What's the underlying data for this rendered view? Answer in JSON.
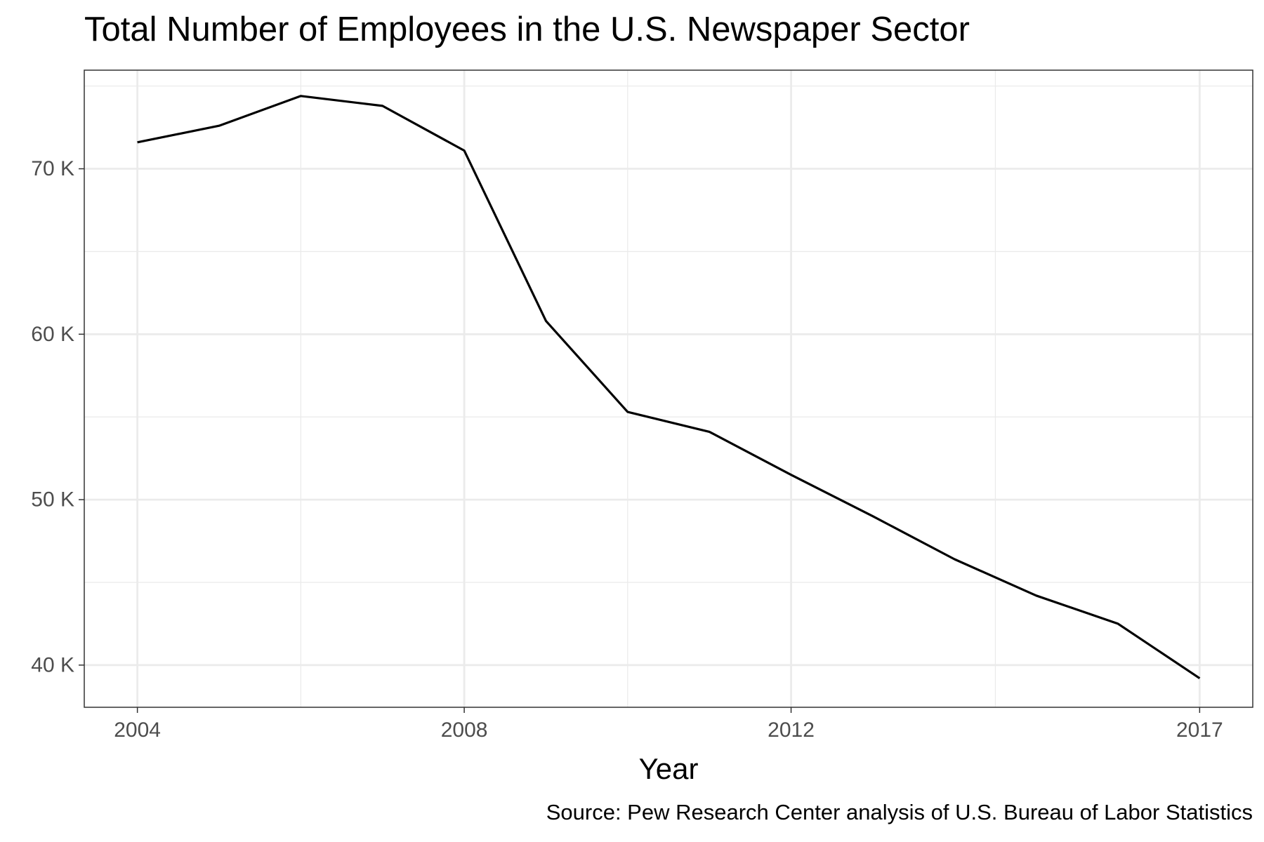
{
  "chart_data": {
    "type": "line",
    "title": "Total Number of Employees in the U.S. Newspaper Sector",
    "xlabel": "Year",
    "ylabel": "",
    "caption": "Source: Pew Research Center analysis of U.S. Bureau of Labor Statistics",
    "x": [
      2004,
      2005,
      2006,
      2007,
      2008,
      2009,
      2010,
      2011,
      2012,
      2013,
      2014,
      2015,
      2016,
      2017
    ],
    "series": [
      {
        "values": [
          71600,
          72600,
          74400,
          73800,
          71100,
          60800,
          55300,
          54100,
          51500,
          49000,
          46400,
          44200,
          42500,
          39200
        ]
      }
    ],
    "xlim": [
      2003.35,
      2017.65
    ],
    "ylim": [
      37450,
      75960
    ],
    "x_ticks": [
      2004,
      2008,
      2012,
      2017
    ],
    "x_tick_labels": [
      "2004",
      "2008",
      "2012",
      "2017"
    ],
    "x_minor_grid": [
      2006,
      2010,
      2014.5
    ],
    "y_ticks": [
      40000,
      50000,
      60000,
      70000
    ],
    "y_tick_labels": [
      "40 K",
      "50 K",
      "60 K",
      "70 K"
    ],
    "y_minor_grid": [
      45000,
      55000,
      65000,
      75000
    ],
    "grid": true,
    "line_color": "#000000",
    "grid_color": "#ebebeb",
    "legend": "none"
  }
}
